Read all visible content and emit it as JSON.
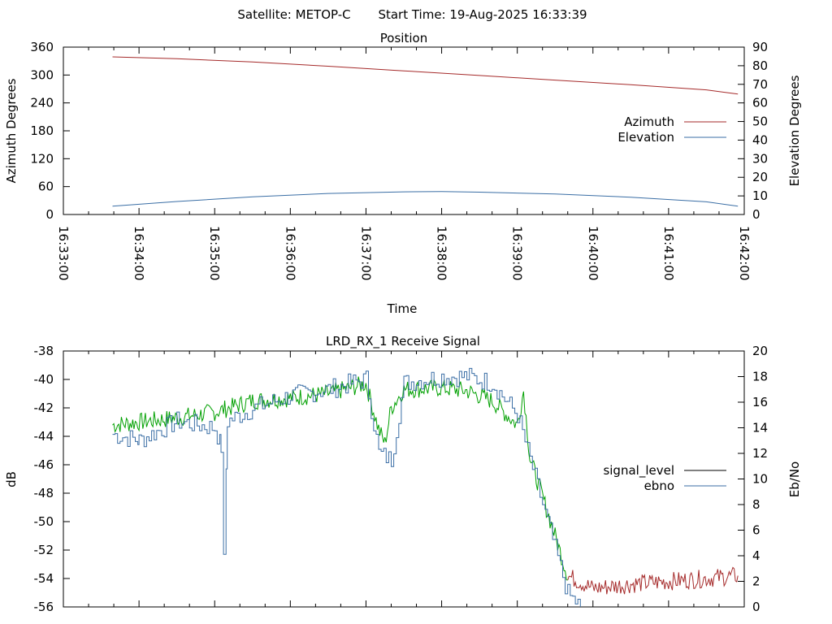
{
  "header": {
    "satellite": "Satellite: METOP-C",
    "start_time": "Start Time: 19-Aug-2025 16:33:39"
  },
  "colors": {
    "azimuth": "#a52a2a",
    "elevation": "#3a6ea5",
    "signal_low": "#a52a2a",
    "signal_high": "#00a000",
    "ebno": "#3a6ea5",
    "axis": "#000000"
  },
  "chart_data": [
    {
      "type": "line",
      "title": "Position",
      "xlabel": "Time",
      "ylabel": "Azimuth Degrees",
      "y2label": "Elevation Degrees",
      "xlim": [
        "16:33:00",
        "16:42:00"
      ],
      "ylim": [
        0,
        360
      ],
      "y2lim": [
        0,
        90
      ],
      "x_ticks": [
        "16:33:00",
        "16:34:00",
        "16:35:00",
        "16:36:00",
        "16:37:00",
        "16:38:00",
        "16:39:00",
        "16:40:00",
        "16:41:00",
        "16:42:00"
      ],
      "y_ticks": [
        "0",
        "60",
        "120",
        "180",
        "240",
        "300",
        "360"
      ],
      "y2_ticks": [
        "0",
        "10",
        "20",
        "30",
        "40",
        "50",
        "60",
        "70",
        "80",
        "90"
      ],
      "legend_position": "right",
      "series": [
        {
          "name": "Azimuth",
          "axis": "y",
          "x": [
            "16:33:39",
            "16:34:30",
            "16:35:30",
            "16:36:30",
            "16:37:30",
            "16:38:30",
            "16:39:30",
            "16:40:30",
            "16:41:30",
            "16:41:55"
          ],
          "values": [
            339,
            335,
            328,
            319,
            309,
            299,
            289,
            279,
            268,
            259
          ]
        },
        {
          "name": "Elevation",
          "axis": "y2",
          "x": [
            "16:33:39",
            "16:34:30",
            "16:35:30",
            "16:36:30",
            "16:37:30",
            "16:38:00",
            "16:38:30",
            "16:39:30",
            "16:40:30",
            "16:41:30",
            "16:41:55"
          ],
          "values": [
            4.5,
            7,
            9.5,
            11.3,
            12.2,
            12.3,
            12,
            11,
            9.3,
            6.8,
            4.5
          ]
        }
      ]
    },
    {
      "type": "line",
      "title": "LRD_RX_1 Receive Signal",
      "ylabel": "dB",
      "y2label": "Eb/No",
      "xlim": [
        "16:33:00",
        "16:42:00"
      ],
      "ylim": [
        -56,
        -38
      ],
      "y2lim": [
        0,
        20
      ],
      "y_ticks": [
        "-38",
        "-40",
        "-42",
        "-44",
        "-46",
        "-48",
        "-50",
        "-52",
        "-54",
        "-56"
      ],
      "y2_ticks": [
        "20",
        "18",
        "16",
        "14",
        "12",
        "10",
        "8",
        "6",
        "4",
        "2",
        "0"
      ],
      "legend_position": "right",
      "series": [
        {
          "name": "signal_level",
          "axis": "y",
          "x": [
            "16:33:39",
            "16:34:00",
            "16:34:30",
            "16:35:00",
            "16:35:30",
            "16:36:00",
            "16:36:30",
            "16:37:00",
            "16:37:10",
            "16:37:15",
            "16:37:20",
            "16:37:30",
            "16:38:00",
            "16:38:20",
            "16:38:40",
            "16:39:00",
            "16:39:05",
            "16:39:10",
            "16:39:30",
            "16:39:40",
            "16:40:00",
            "16:40:30",
            "16:41:00",
            "16:41:30",
            "16:41:55"
          ],
          "values": [
            -43.2,
            -43.0,
            -42.7,
            -42.3,
            -41.5,
            -41.3,
            -41.0,
            -40.3,
            -43.5,
            -44.5,
            -42.0,
            -40.7,
            -40.6,
            -40.8,
            -41.5,
            -43.2,
            -40.8,
            -45.5,
            -51.0,
            -53.8,
            -54.7,
            -54.4,
            -54.2,
            -54.0,
            -53.8
          ]
        },
        {
          "name": "ebno",
          "axis": "y2",
          "x": [
            "16:33:39",
            "16:34:00",
            "16:34:30",
            "16:35:00",
            "16:35:05",
            "16:35:07",
            "16:35:10",
            "16:35:30",
            "16:36:00",
            "16:36:30",
            "16:37:00",
            "16:37:10",
            "16:37:20",
            "16:37:30",
            "16:38:00",
            "16:38:20",
            "16:38:40",
            "16:39:00",
            "16:39:20",
            "16:39:40",
            "16:39:50"
          ],
          "values": [
            13.5,
            13.0,
            14.5,
            14.0,
            12.5,
            3.5,
            14.5,
            15.5,
            16.5,
            17.0,
            17.8,
            12.0,
            11.5,
            17.5,
            18.0,
            18.0,
            17.5,
            15.0,
            8.0,
            1.0,
            0.0
          ]
        }
      ]
    }
  ]
}
